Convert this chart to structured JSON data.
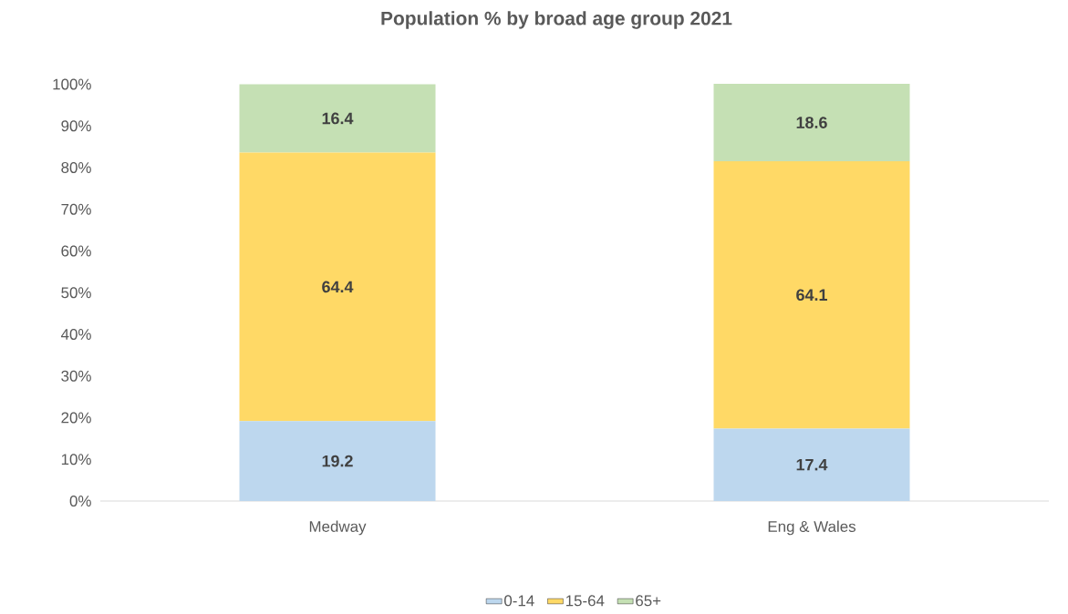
{
  "chart_data": {
    "type": "bar",
    "title": "Population % by broad age group 2021",
    "categories": [
      "Medway",
      "Eng & Wales"
    ],
    "series": [
      {
        "name": "0-14",
        "color": "#bdd7ee",
        "values": [
          19.2,
          17.4
        ]
      },
      {
        "name": "15-64",
        "color": "#ffd966",
        "values": [
          64.4,
          64.1
        ]
      },
      {
        "name": "65+",
        "color": "#c5e0b4",
        "values": [
          16.4,
          18.6
        ]
      }
    ],
    "stacked": true,
    "data_labels": true,
    "legend": "bottom",
    "ylim": [
      0,
      100.1
    ],
    "yticks": [
      {
        "value": 0,
        "label": "0%"
      },
      {
        "value": 10,
        "label": "10%"
      },
      {
        "value": 20,
        "label": "20%"
      },
      {
        "value": 30,
        "label": "30%"
      },
      {
        "value": 40,
        "label": "40%"
      },
      {
        "value": 50,
        "label": "50%"
      },
      {
        "value": 60,
        "label": "60%"
      },
      {
        "value": 70,
        "label": "70%"
      },
      {
        "value": 80,
        "label": "80%"
      },
      {
        "value": 90,
        "label": "90%"
      },
      {
        "value": 100,
        "label": "100%"
      }
    ]
  }
}
